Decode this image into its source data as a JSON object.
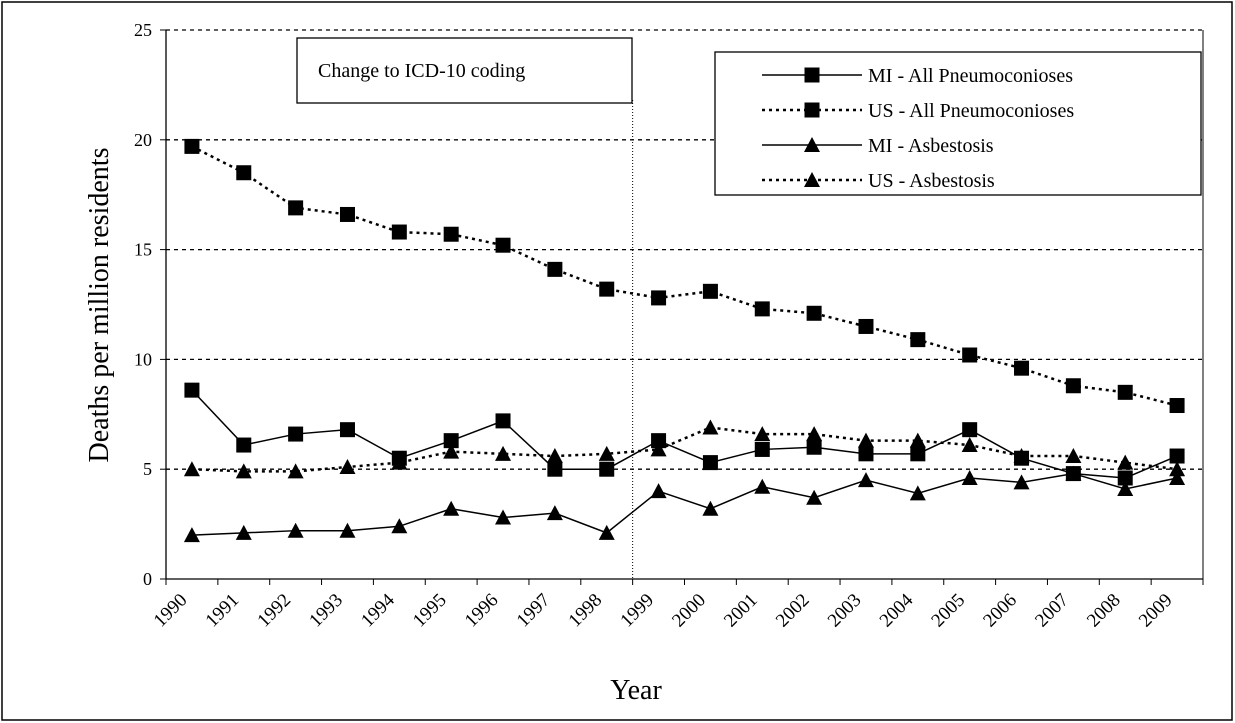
{
  "chart_data": {
    "type": "line",
    "x_label": "Year",
    "y_label": "Deaths per million residents",
    "annotation": "Change to ICD-10 coding",
    "categories": [
      "1990",
      "1991",
      "1992",
      "1993",
      "1994",
      "1995",
      "1996",
      "1997",
      "1998",
      "1999",
      "2000",
      "2001",
      "2002",
      "2003",
      "2004",
      "2005",
      "2006",
      "2007",
      "2008",
      "2009"
    ],
    "series": [
      {
        "name": "MI - All Pneumoconioses",
        "color": "#000000",
        "dash": "solid",
        "marker": "square",
        "values": [
          8.6,
          6.1,
          6.6,
          6.8,
          5.5,
          6.3,
          7.2,
          5.0,
          5.0,
          6.3,
          5.3,
          5.9,
          6.0,
          5.7,
          5.7,
          6.8,
          5.5,
          4.8,
          4.6,
          5.6
        ]
      },
      {
        "name": "US - All Pneumoconioses",
        "color": "#000000",
        "dash": "dotted",
        "marker": "square",
        "values": [
          19.7,
          18.5,
          16.9,
          16.6,
          15.8,
          15.7,
          15.2,
          14.1,
          13.2,
          12.8,
          13.1,
          12.3,
          12.1,
          11.5,
          10.9,
          10.2,
          9.6,
          8.8,
          8.5,
          7.9
        ]
      },
      {
        "name": "MI - Asbestosis",
        "color": "#000000",
        "dash": "solid",
        "marker": "triangle",
        "values": [
          2.0,
          2.1,
          2.2,
          2.2,
          2.4,
          3.2,
          2.8,
          3.0,
          2.1,
          4.0,
          3.2,
          4.2,
          3.7,
          4.5,
          3.9,
          4.6,
          4.4,
          4.8,
          4.1,
          4.6
        ]
      },
      {
        "name": "US - Asbestosis",
        "color": "#000000",
        "dash": "dotted",
        "marker": "triangle",
        "values": [
          5.0,
          4.9,
          4.9,
          5.1,
          5.3,
          5.8,
          5.7,
          5.6,
          5.7,
          5.9,
          6.9,
          6.6,
          6.6,
          6.3,
          6.3,
          6.1,
          5.6,
          5.6,
          5.3,
          5.0
        ]
      }
    ],
    "ylim": [
      0,
      25
    ],
    "yticks": [
      0,
      5,
      10,
      15,
      20,
      25
    ],
    "grid": true
  }
}
